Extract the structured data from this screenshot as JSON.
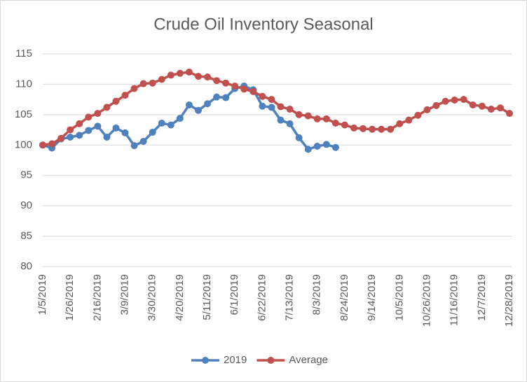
{
  "chart_data": {
    "type": "line",
    "title": "Crude Oil Inventory Seasonal",
    "categories": [
      "1/5/2019",
      null,
      null,
      "1/26/2019",
      null,
      null,
      "2/16/2019",
      null,
      null,
      "3/9/2019",
      null,
      null,
      "3/30/2019",
      null,
      null,
      "4/20/2019",
      null,
      null,
      "5/11/2019",
      null,
      null,
      "6/1/2019",
      null,
      null,
      "6/22/2019",
      null,
      null,
      "7/13/2019",
      null,
      null,
      "8/3/2019",
      null,
      null,
      "8/24/2019",
      null,
      null,
      "9/14/2019",
      null,
      null,
      "10/5/2019",
      null,
      null,
      "10/26/2019",
      null,
      null,
      "11/16/2019",
      null,
      null,
      "12/7/2019",
      null,
      null,
      "12/28/2019"
    ],
    "series": [
      {
        "name": "2019",
        "color": "#4f81bd",
        "values": [
          100,
          99.5,
          101,
          101.3,
          101.6,
          102.4,
          103.1,
          101.3,
          102.8,
          102,
          99.9,
          100.6,
          102.1,
          103.6,
          103.3,
          104.4,
          106.6,
          105.7,
          106.8,
          107.9,
          107.8,
          109.3,
          109.7,
          109.1,
          106.4,
          106.2,
          104.1,
          103.5,
          101.2,
          99.3,
          99.8,
          100.1,
          99.6,
          null,
          null,
          null,
          null,
          null,
          null,
          null,
          null,
          null,
          null,
          null,
          null,
          null,
          null,
          null,
          null,
          null,
          null,
          null
        ]
      },
      {
        "name": "Average",
        "color": "#c0504d",
        "values": [
          100,
          100.2,
          101.1,
          102.5,
          103.5,
          104.6,
          105.2,
          106.2,
          107.2,
          108.2,
          109.3,
          110.1,
          110.2,
          110.8,
          111.5,
          111.8,
          112,
          111.3,
          111.2,
          110.6,
          110.2,
          109.7,
          109.2,
          108.8,
          108,
          107.5,
          106.3,
          105.9,
          105,
          104.8,
          104.3,
          104.3,
          103.6,
          103.3,
          102.8,
          102.7,
          102.6,
          102.6,
          102.6,
          103.5,
          104.1,
          104.9,
          105.8,
          106.5,
          107.2,
          107.4,
          107.5,
          106.6,
          106.4,
          105.9,
          106.1,
          105.2
        ]
      }
    ],
    "ylim": [
      80,
      115
    ],
    "yticks": [
      80,
      85,
      90,
      95,
      100,
      105,
      110,
      115
    ],
    "grid": true,
    "legend": "bottom"
  }
}
